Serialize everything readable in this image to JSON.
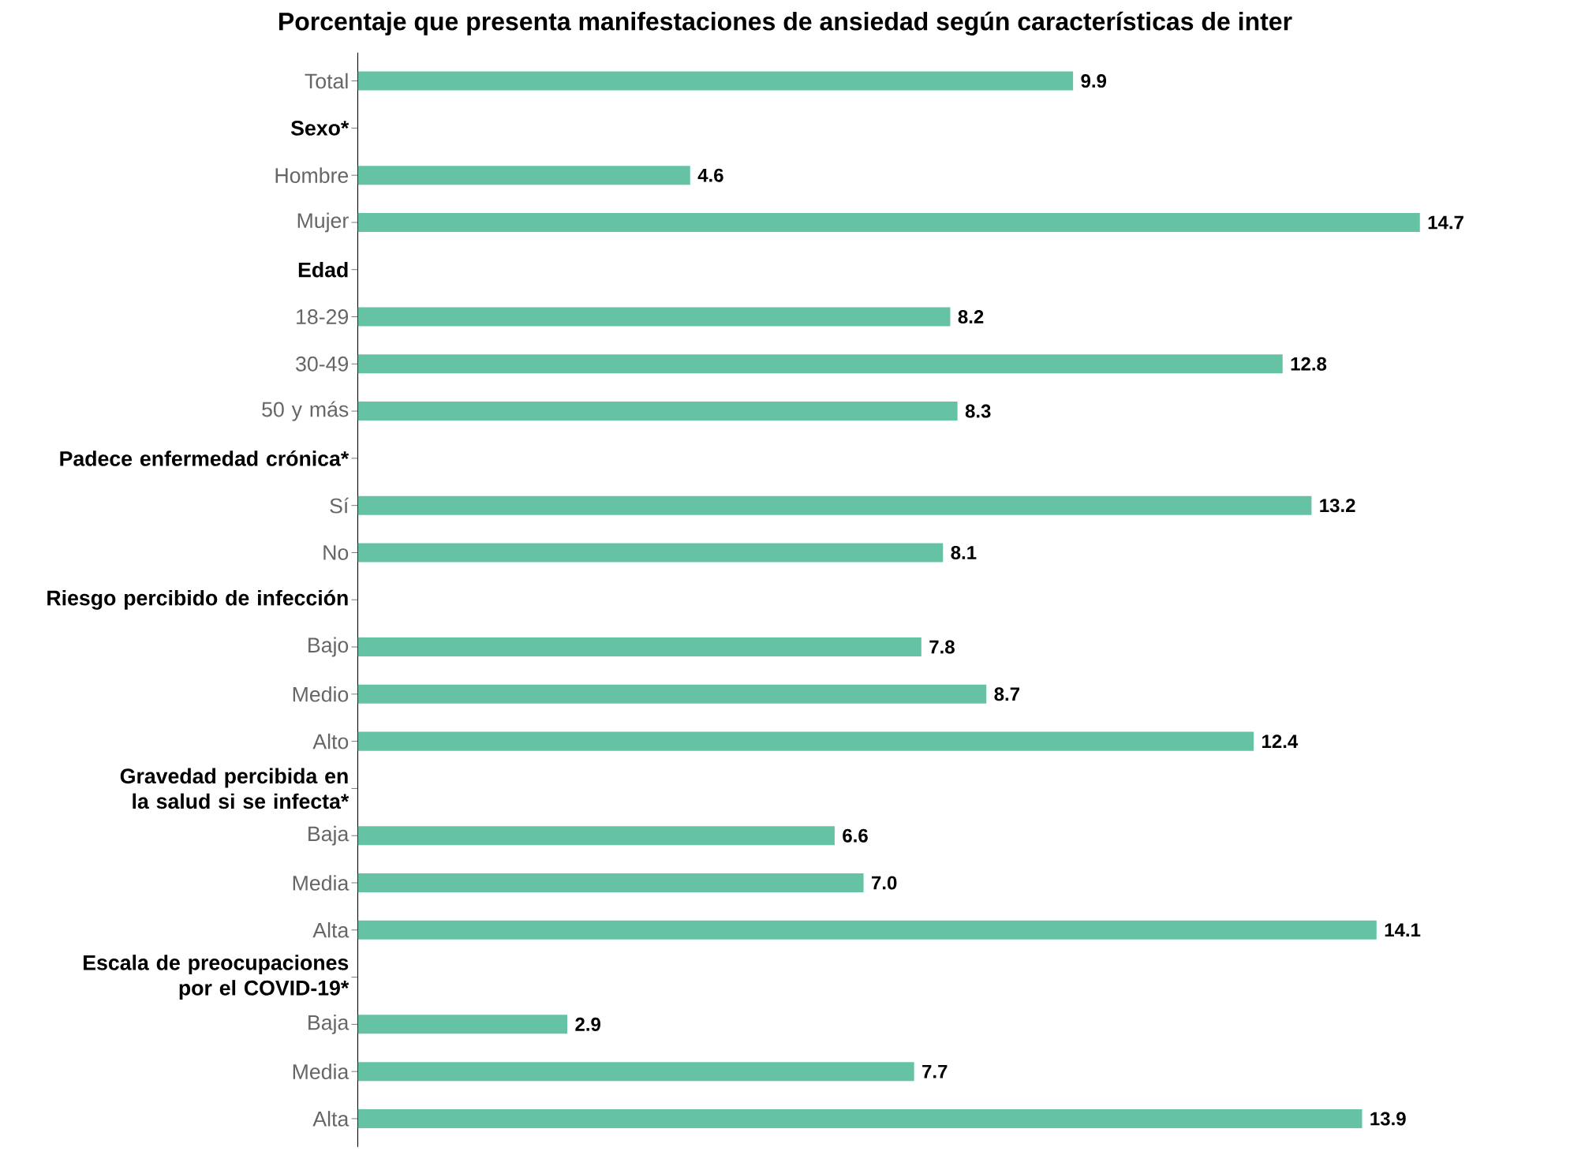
{
  "chart_data": {
    "type": "bar",
    "orientation": "horizontal",
    "title": "Porcentaje que presenta manifestaciones de ansiedad según características de inter",
    "categories": [
      "Total",
      "Sexo*",
      "Hombre",
      "Mujer",
      "Edad",
      "18-29",
      "30-49",
      "50 y más",
      "Padece enfermedad crónica*",
      "Sí",
      "No",
      "Riesgo percibido de infección",
      "Bajo",
      "Medio",
      "Alto",
      "Gravedad percibida en la salud si se infecta*",
      "Baja",
      "Media",
      "Alta",
      "Escala de preocupaciones por el COVID-19*",
      "Baja",
      "Media",
      "Alta"
    ],
    "values": [
      9.9,
      null,
      4.6,
      14.7,
      null,
      8.2,
      12.8,
      8.3,
      null,
      13.2,
      8.1,
      null,
      7.8,
      8.7,
      12.4,
      null,
      6.6,
      7.0,
      14.1,
      null,
      2.9,
      7.7,
      13.9
    ],
    "value_labels": [
      "9.9",
      null,
      "4.6",
      "14.7",
      null,
      "8.2",
      "12.8",
      "8.3",
      null,
      "13.2",
      "8.1",
      null,
      "7.8",
      "8.7",
      "12.4",
      null,
      "6.6",
      "7.0",
      "14.1",
      null,
      "2.9",
      "7.7",
      "13.9"
    ],
    "color": "#66c2a5",
    "tick_labels": "y",
    "grid": false
  }
}
